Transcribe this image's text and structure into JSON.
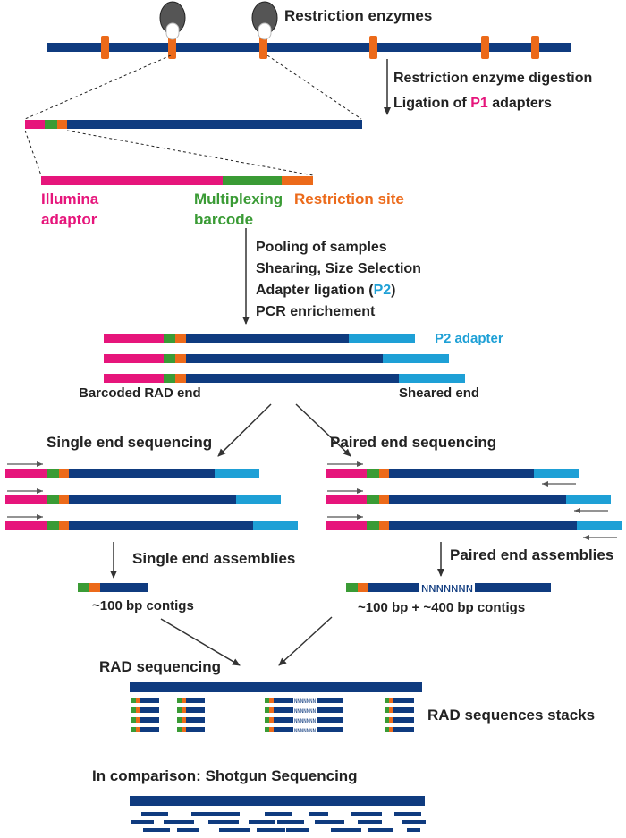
{
  "colors": {
    "dna": "#0f3b7f",
    "illumina": "#e6157b",
    "barcode": "#3a9b35",
    "site": "#ec6a1a",
    "p2": "#1ea0d6",
    "enzyme": "#555555",
    "text": "#222222",
    "line": "#333333"
  },
  "labels": {
    "restriction_enzymes": "Restriction enzymes",
    "digestion": "Restriction enzyme digestion",
    "ligation_prefix": "Ligation of ",
    "ligation_p1": "P1",
    "ligation_suffix": " adapters",
    "illumina_1": "Illumina",
    "illumina_2": "adaptor",
    "multiplexing_1": "Multiplexing",
    "multiplexing_2": "barcode",
    "restriction_site": "Restriction site",
    "step_pooling": "Pooling of samples",
    "step_shearing": "Shearing, Size Selection",
    "step_adapter_prefix": "Adapter ligation (",
    "step_adapter_p2": "P2",
    "step_adapter_suffix": ")",
    "step_pcr": "PCR enrichement",
    "p2_adapter": "P2 adapter",
    "barcoded_end": "Barcoded RAD end",
    "sheared_end": "Sheared end",
    "single_end_seq": "Single end sequencing",
    "paired_end_seq": "Paired end sequencing",
    "single_end_asm": "Single end assemblies",
    "paired_end_asm": "Paired end assemblies",
    "single_contigs": "~100 bp contigs",
    "paired_contigs": "~100 bp + ~400 bp contigs",
    "n_gap": "NNNNNNN",
    "rad_sequencing": "RAD sequencing",
    "rad_stacks": "RAD sequences stacks",
    "shotgun": "In comparison: Shotgun Sequencing",
    "mini_n": "NNNNNNN"
  }
}
